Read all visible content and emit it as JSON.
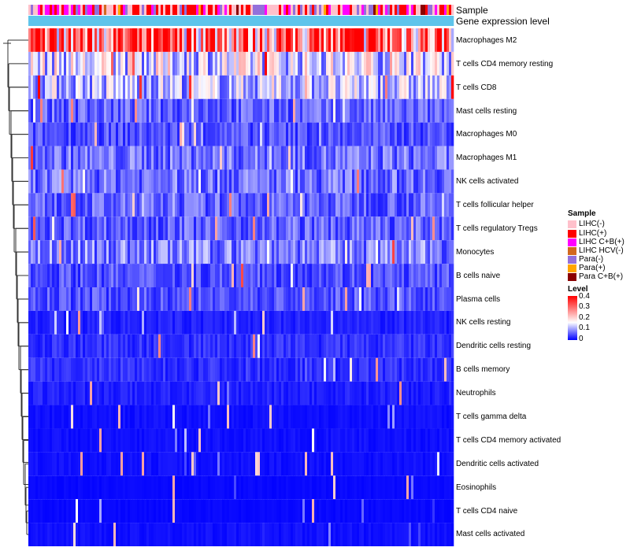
{
  "chart_data": {
    "type": "heatmap",
    "title": "",
    "annotation_rows": [
      "Sample",
      "Gene expression level"
    ],
    "annotation_color": "#5ec4eb",
    "rows": [
      {
        "name": "Macrophages M2",
        "level": 0.3
      },
      {
        "name": "T cells CD4 memory resting",
        "level": 0.14
      },
      {
        "name": "T cells CD8",
        "level": 0.12
      },
      {
        "name": "Mast cells resting",
        "level": 0.06
      },
      {
        "name": "Macrophages M0",
        "level": 0.05
      },
      {
        "name": "Macrophages M1",
        "level": 0.07
      },
      {
        "name": "NK cells activated",
        "level": 0.07
      },
      {
        "name": "T cells follicular helper",
        "level": 0.06
      },
      {
        "name": "T cells regulatory  Tregs",
        "level": 0.06
      },
      {
        "name": "Monocytes",
        "level": 0.08
      },
      {
        "name": "B cells naive",
        "level": 0.05
      },
      {
        "name": "Plasma cells",
        "level": 0.05
      },
      {
        "name": "NK cells resting",
        "level": 0.02
      },
      {
        "name": "Dendritic cells resting",
        "level": 0.03
      },
      {
        "name": "B cells memory",
        "level": 0.03
      },
      {
        "name": "Neutrophils",
        "level": 0.02
      },
      {
        "name": "T cells gamma delta",
        "level": 0.01
      },
      {
        "name": "T cells CD4 memory activated",
        "level": 0.01
      },
      {
        "name": "Dendritic cells activated",
        "level": 0.01
      },
      {
        "name": "Eosinophils",
        "level": 0.005
      },
      {
        "name": "T cells CD4 naive",
        "level": 0.005
      },
      {
        "name": "Mast cells activated",
        "level": 0.01
      }
    ],
    "legend_sample": {
      "title": "Sample",
      "items": [
        {
          "label": "LIHC(-)",
          "color": "#ffc0cb"
        },
        {
          "label": "LIHC(+)",
          "color": "#ff0000"
        },
        {
          "label": "LIHC C+B(+)",
          "color": "#ff00ff"
        },
        {
          "label": "LIHC HCV(-)",
          "color": "#d2691e"
        },
        {
          "label": "Para(-)",
          "color": "#9370db"
        },
        {
          "label": "Para(+)",
          "color": "#ffa500"
        },
        {
          "label": "Para C+B(+)",
          "color": "#8b0000"
        }
      ]
    },
    "legend_level": {
      "title": "Level",
      "ticks": [
        "0.4",
        "0.3",
        "0.2",
        "0.1",
        "0"
      ],
      "range": [
        0,
        0.4
      ],
      "colors": [
        "#0000ff",
        "#ffffff",
        "#ff0000"
      ]
    }
  }
}
